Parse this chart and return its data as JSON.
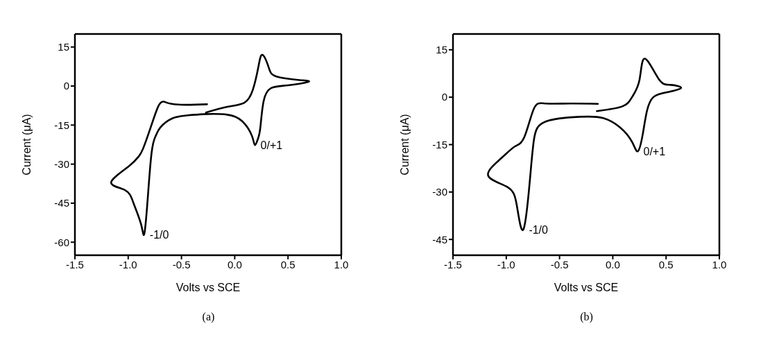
{
  "chart_data": [
    {
      "type": "line",
      "xlabel": "Volts vs SCE",
      "ylabel": "Current (μA)",
      "xlim": [
        -1.5,
        1.0
      ],
      "ylim": [
        -65,
        20
      ],
      "xticks": [
        {
          "value": -1.5,
          "label": "-1.5"
        },
        {
          "value": -1.0,
          "label": "-1.0"
        },
        {
          "value": -0.5,
          "label": "-0.5"
        },
        {
          "value": 0,
          "label": "0.0"
        },
        {
          "value": 0.5,
          "label": "0.5"
        },
        {
          "value": 1.0,
          "label": "1.0"
        }
      ],
      "yticks": [
        15,
        0,
        -15,
        -30,
        -45,
        -60
      ],
      "marker": "none",
      "line_style": "solid",
      "series": [
        {
          "color": "#000000",
          "x": [
            -0.26,
            -0.45,
            -0.6,
            -0.67,
            -0.72,
            -0.79,
            -0.86,
            -0.9,
            -1.0,
            -1.16,
            -1.03,
            -0.95,
            -0.88,
            -0.85,
            -0.82,
            -0.78,
            -0.74,
            -0.7,
            -0.59,
            -0.45,
            -0.29,
            -0.07,
            0.07,
            0.16,
            0.19,
            0.22,
            0.24,
            0.27,
            0.34,
            0.5,
            0.69,
            0.61,
            0.39,
            0.32,
            0.26,
            0.22,
            0.17,
            0.09,
            -0.07,
            -0.27
          ],
          "values": [
            -7,
            -7.2,
            -6.8,
            -6,
            -8,
            -16,
            -24,
            -27,
            -31,
            -37,
            -40,
            -45,
            -53,
            -57,
            -45,
            -25.5,
            -19,
            -16,
            -12.5,
            -11.3,
            -10.8,
            -11,
            -13.5,
            -19,
            -22.7,
            -20,
            -16,
            -6,
            -0.8,
            0.3,
            1.6,
            2.3,
            3.7,
            7,
            12,
            7,
            -1.4,
            -6.4,
            -8,
            -10.2
          ]
        }
      ],
      "annotations": [
        {
          "text": "-1/0",
          "x": -0.85,
          "y": -57
        },
        {
          "text": "0/+1",
          "x": 0.19,
          "y": -22.7
        },
        "(a)"
      ]
    },
    {
      "type": "line",
      "xlabel": "Volts vs SCE",
      "ylabel": "Current (μA)",
      "xlim": [
        -1.5,
        1.0
      ],
      "ylim": [
        -50,
        20
      ],
      "xticks": [
        {
          "value": -1.5,
          "label": "-1.5"
        },
        {
          "value": -1.0,
          "label": "-1.0"
        },
        {
          "value": -0.5,
          "label": "-0.5"
        },
        {
          "value": 0,
          "label": "0.0"
        },
        {
          "value": 0.5,
          "label": "0.5"
        },
        {
          "value": 1.0,
          "label": "1.0"
        }
      ],
      "yticks": [
        15,
        0,
        -15,
        -30,
        -45
      ],
      "marker": "none",
      "line_style": "solid",
      "series": [
        {
          "color": "#000000",
          "x": [
            -0.14,
            -0.4,
            -0.63,
            -0.74,
            -0.83,
            -0.92,
            -1.05,
            -1.17,
            -0.99,
            -0.9,
            -0.84,
            -0.78,
            -0.74,
            -0.63,
            -0.31,
            -0.09,
            0.07,
            0.18,
            0.235,
            0.28,
            0.32,
            0.38,
            0.5,
            0.64,
            0.54,
            0.43,
            0.3,
            0.25,
            0.18,
            0.09,
            -0.15
          ],
          "values": [
            -2.1,
            -2,
            -2,
            -3.6,
            -12.6,
            -15.6,
            -19.4,
            -24.8,
            -28.4,
            -34.4,
            -41.9,
            -26.9,
            -13.4,
            -7.7,
            -6.2,
            -6.6,
            -9.6,
            -14.1,
            -17.1,
            -11.9,
            -4.4,
            0,
            1.5,
            2.9,
            3.9,
            5.8,
            12.2,
            5.4,
            0,
            -2.9,
            -4.4
          ]
        }
      ],
      "annotations": [
        {
          "text": "-1/0",
          "x": -0.84,
          "y": -41.9
        },
        {
          "text": "0/+1",
          "x": 0.235,
          "y": -17.1
        },
        "(b)"
      ]
    }
  ]
}
